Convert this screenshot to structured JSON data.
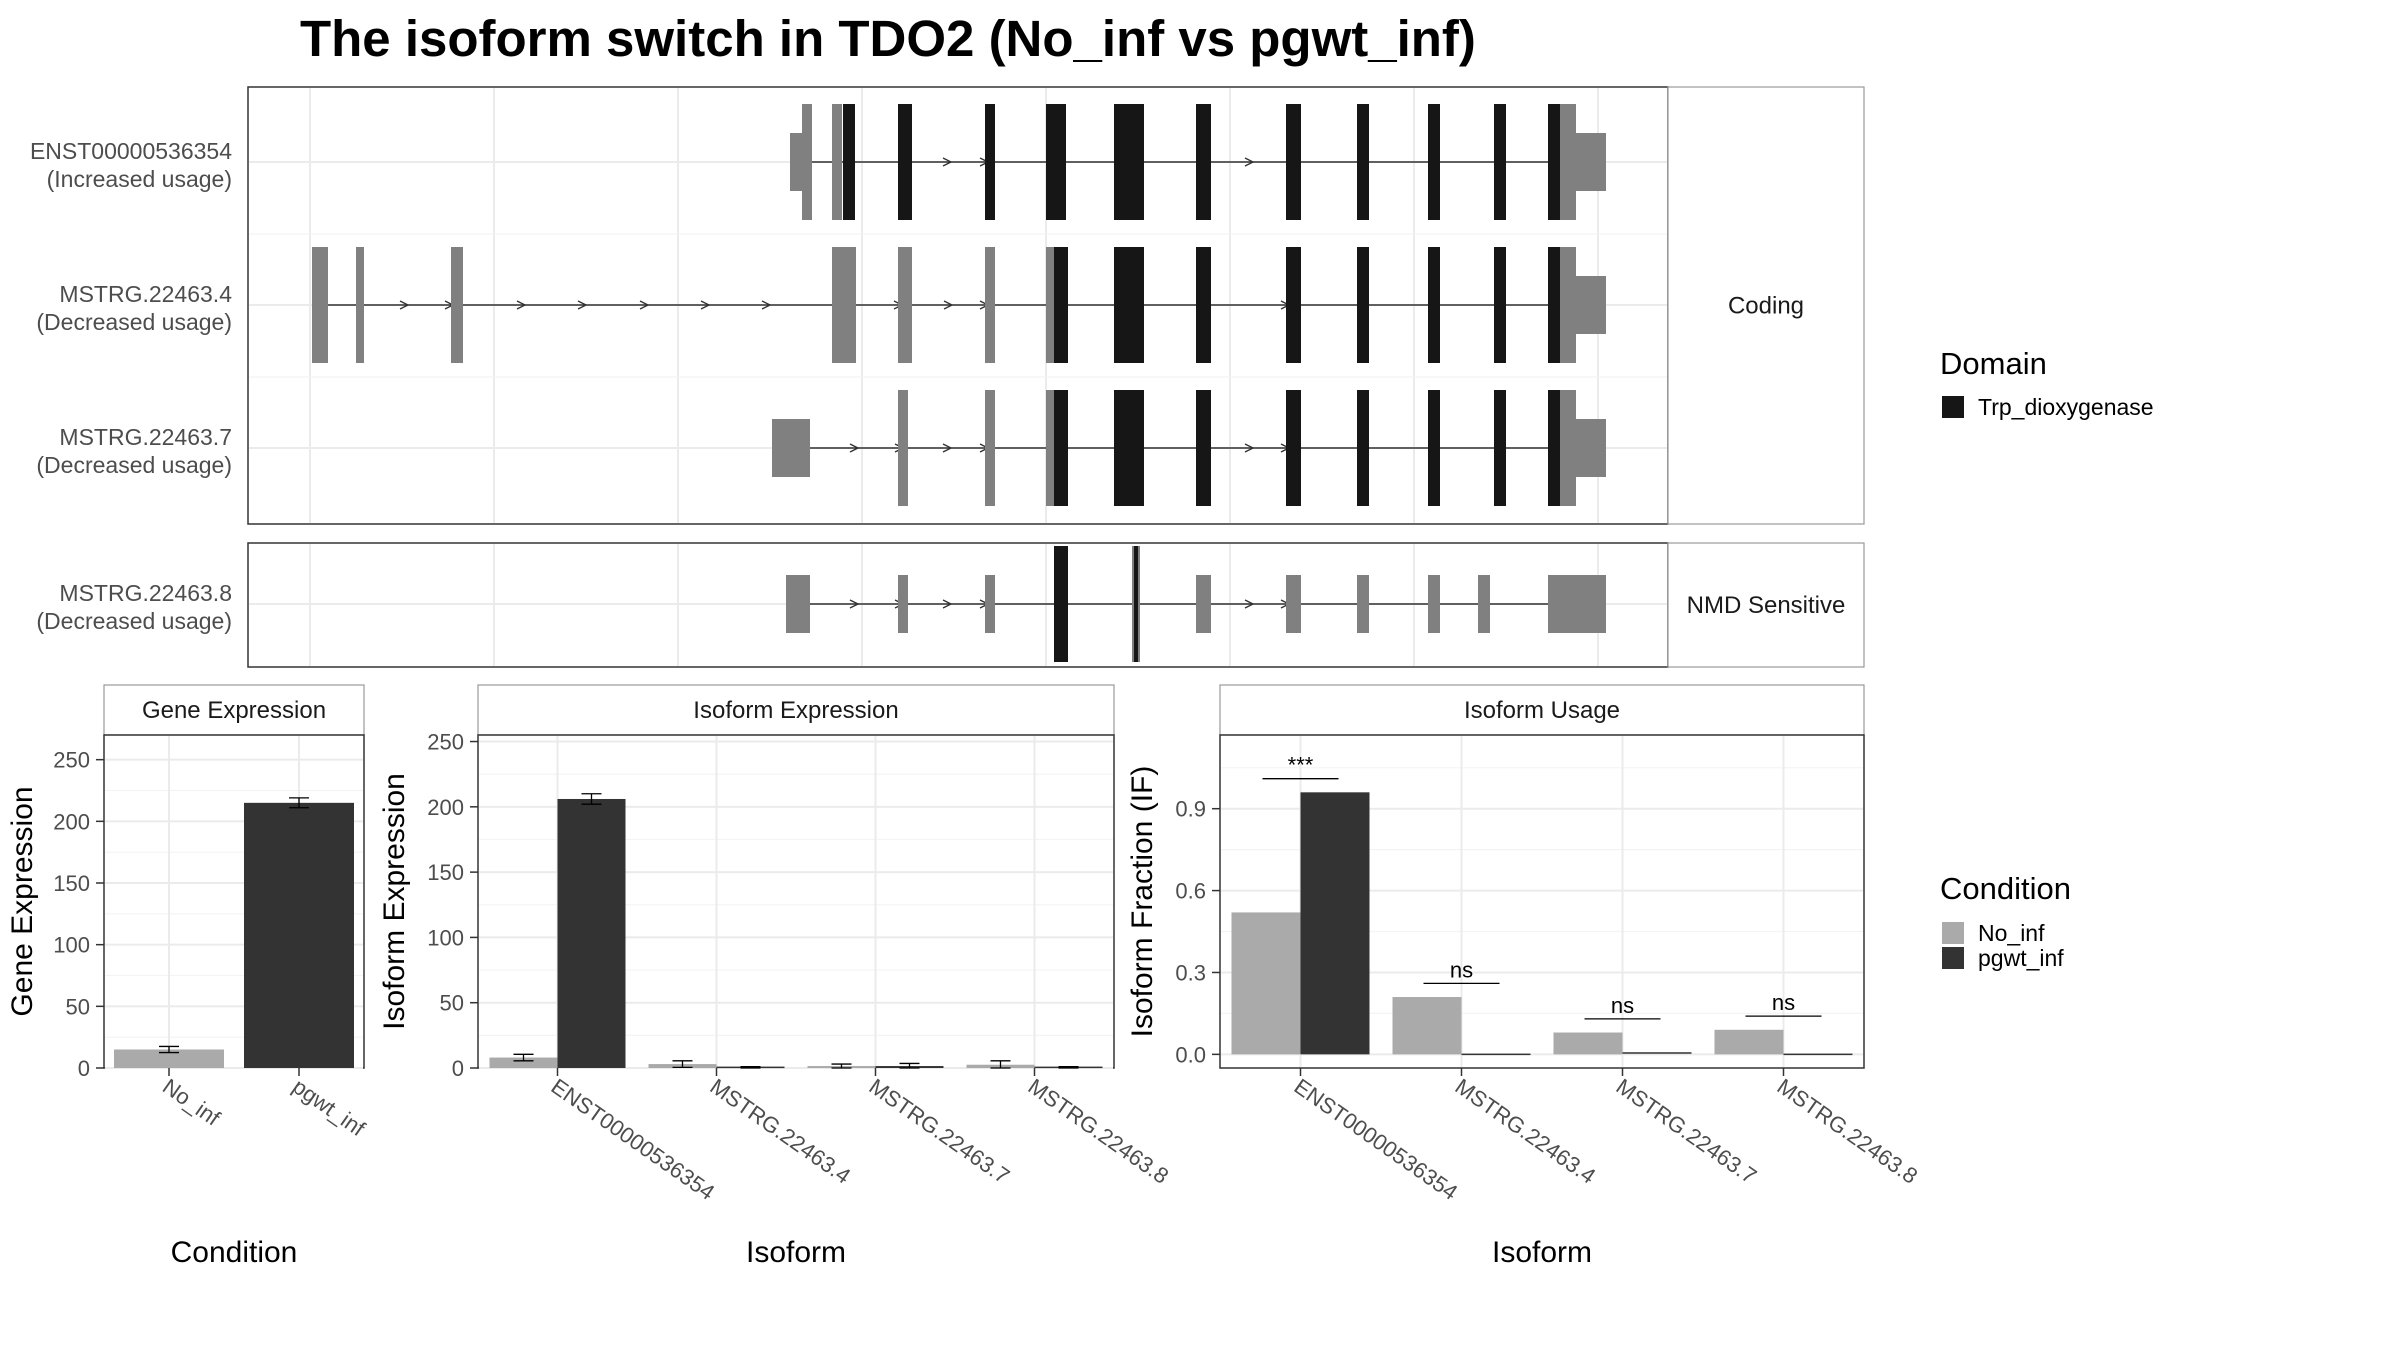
{
  "title": "The isoform switch in TDO2 (No_inf vs pgwt_inf)",
  "colors": {
    "domain": "#161616",
    "noncoding_exon": "#808080",
    "no_inf": "#aaaaaa",
    "pgwt_inf": "#333333"
  },
  "chart_data": [
    {
      "type": "gene-structure",
      "facets": [
        "Coding",
        "NMD Sensitive"
      ],
      "transcripts": [
        {
          "id": "ENST00000536354",
          "usage": "(Increased usage)",
          "facet": "Coding"
        },
        {
          "id": "MSTRG.22463.4",
          "usage": "(Decreased usage)",
          "facet": "Coding"
        },
        {
          "id": "MSTRG.22463.7",
          "usage": "(Decreased usage)",
          "facet": "Coding"
        },
        {
          "id": "MSTRG.22463.8",
          "usage": "(Decreased usage)",
          "facet": "NMD Sensitive"
        }
      ],
      "legend": {
        "title": "Domain",
        "entries": [
          "Trp_dioxygenase"
        ]
      }
    },
    {
      "type": "bar",
      "strip": "Gene Expression",
      "xlabel": "Condition",
      "ylabel": "Gene Expression",
      "categories": [
        "No_inf",
        "pgwt_inf"
      ],
      "values": [
        15,
        215
      ],
      "errors": [
        2.5,
        4
      ],
      "ylim": [
        0,
        270
      ],
      "yticks": [
        0,
        50,
        100,
        150,
        200,
        250
      ]
    },
    {
      "type": "bar",
      "strip": "Isoform Expression",
      "xlabel": "Isoform",
      "ylabel": "Isoform Expression",
      "categories": [
        "ENST00000536354",
        "MSTRG.22463.4",
        "MSTRG.22463.7",
        "MSTRG.22463.8"
      ],
      "series": [
        {
          "name": "No_inf",
          "values": [
            8,
            3,
            1.5,
            2.5
          ],
          "errors": [
            2.5,
            2.5,
            1.5,
            3
          ]
        },
        {
          "name": "pgwt_inf",
          "values": [
            206,
            0.5,
            1.5,
            0.5
          ],
          "errors": [
            4,
            0.5,
            2,
            0.5
          ]
        }
      ],
      "ylim": [
        0,
        255
      ],
      "yticks": [
        0,
        50,
        100,
        150,
        200,
        250
      ]
    },
    {
      "type": "bar",
      "strip": "Isoform Usage",
      "xlabel": "Isoform",
      "ylabel": "Isoform Fraction (IF)",
      "categories": [
        "ENST00000536354",
        "MSTRG.22463.4",
        "MSTRG.22463.7",
        "MSTRG.22463.8"
      ],
      "series": [
        {
          "name": "No_inf",
          "values": [
            0.52,
            0.21,
            0.08,
            0.09
          ]
        },
        {
          "name": "pgwt_inf",
          "values": [
            0.96,
            0.0,
            0.005,
            0.0
          ]
        }
      ],
      "significance": [
        "***",
        "ns",
        "ns",
        "ns"
      ],
      "ylim": [
        -0.05,
        1.17
      ],
      "yticks": [
        0.0,
        0.3,
        0.6,
        0.9
      ],
      "ytick_labels": [
        "0.0",
        "0.3",
        "0.6",
        "0.9"
      ]
    }
  ],
  "condition_legend": {
    "title": "Condition",
    "entries": [
      "No_inf",
      "pgwt_inf"
    ]
  }
}
